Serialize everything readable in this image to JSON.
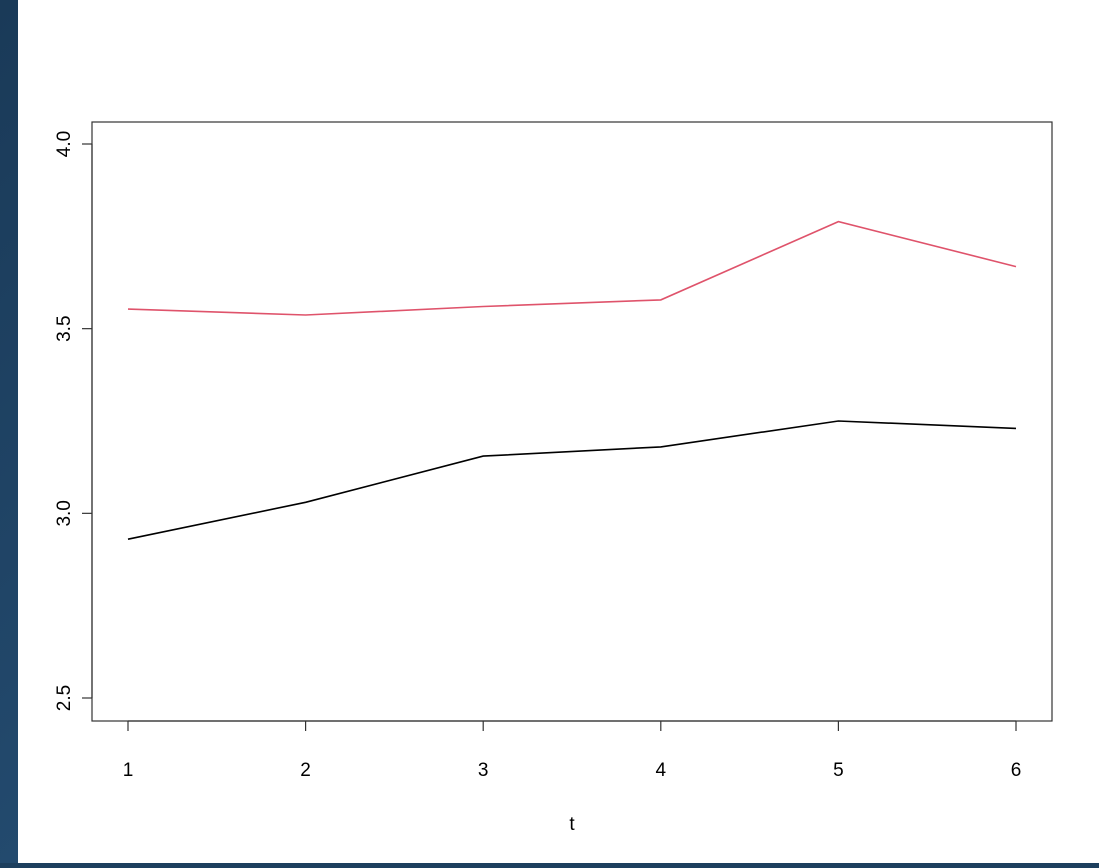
{
  "chart_data": {
    "type": "line",
    "title": "",
    "xlabel": "t",
    "ylabel": "",
    "x": [
      1,
      2,
      3,
      4,
      5,
      6
    ],
    "xlim": [
      1,
      6
    ],
    "ylim": [
      2.5,
      4.0
    ],
    "xticks": [
      "1",
      "2",
      "3",
      "4",
      "5",
      "6"
    ],
    "yticks": [
      "2.5",
      "3.0",
      "3.5",
      "4.0"
    ],
    "xtick_values": [
      1,
      2,
      3,
      4,
      5,
      6
    ],
    "ytick_values": [
      2.5,
      3.0,
      3.5,
      4.0
    ],
    "grid": false,
    "legend": "none",
    "series": [
      {
        "color": "#000000",
        "values": [
          2.93,
          3.03,
          3.155,
          3.18,
          3.25,
          3.23
        ]
      },
      {
        "color": "#df536b",
        "values": [
          3.553,
          3.537,
          3.56,
          3.578,
          3.79,
          3.668
        ]
      }
    ]
  }
}
